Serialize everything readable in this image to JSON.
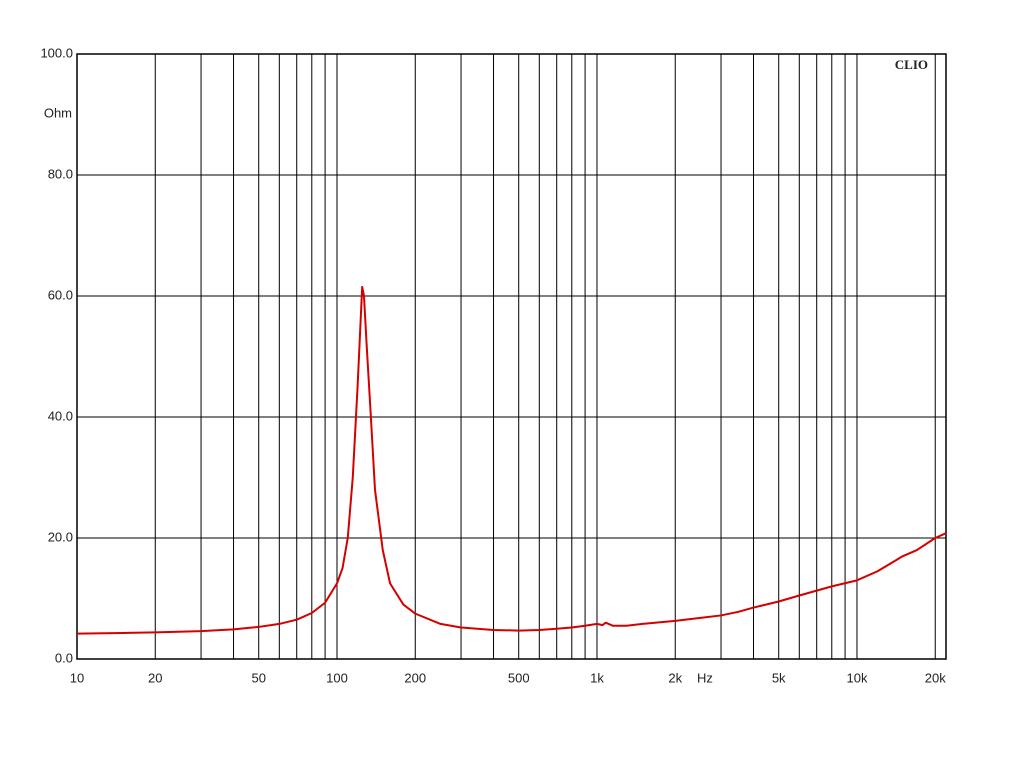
{
  "chart_data": {
    "type": "line",
    "x_label": "Hz",
    "y_label": "Ohm",
    "annotation": "CLIO",
    "xlog": true,
    "grid": true,
    "xlim": [
      10,
      22000
    ],
    "ylim": [
      0,
      100
    ],
    "xticks": [
      10,
      20,
      50,
      100,
      200,
      500,
      {
        "value": 1000,
        "label": "1k"
      },
      {
        "value": 2000,
        "label": "2k"
      },
      {
        "value": 5000,
        "label": "5k"
      },
      {
        "value": 10000,
        "label": "10k"
      },
      {
        "value": 20000,
        "label": "20k"
      }
    ],
    "xminor": [
      30,
      40,
      60,
      70,
      80,
      90,
      300,
      400,
      600,
      700,
      800,
      900,
      3000,
      4000,
      6000,
      7000,
      8000,
      9000
    ],
    "yticks": [
      {
        "value": 0,
        "label": "0.0"
      },
      {
        "value": 20,
        "label": "20.0"
      },
      {
        "value": 40,
        "label": "40.0"
      },
      {
        "value": 60,
        "label": "60.0"
      },
      {
        "value": 80,
        "label": "80.0"
      },
      {
        "value": 100,
        "label": "100.0"
      }
    ],
    "x": [
      10,
      15,
      20,
      30,
      40,
      50,
      60,
      70,
      80,
      90,
      100,
      105,
      110,
      115,
      120,
      123,
      125,
      127,
      130,
      135,
      140,
      150,
      160,
      180,
      200,
      250,
      300,
      400,
      500,
      600,
      700,
      800,
      900,
      1000,
      1050,
      1080,
      1150,
      1300,
      1500,
      2000,
      2500,
      3000,
      3500,
      4000,
      5000,
      6000,
      7000,
      8000,
      10000,
      12000,
      15000,
      17000,
      20000,
      22000
    ],
    "series": [
      {
        "color": "#d40000",
        "values": [
          4.2,
          4.3,
          4.4,
          4.6,
          4.9,
          5.3,
          5.8,
          6.5,
          7.6,
          9.3,
          12.5,
          15,
          20,
          30,
          45,
          55,
          61.5,
          60,
          52,
          40,
          28,
          18,
          12.5,
          9,
          7.5,
          5.8,
          5.2,
          4.8,
          4.7,
          4.8,
          5,
          5.2,
          5.5,
          5.8,
          5.6,
          6,
          5.5,
          5.5,
          5.8,
          6.3,
          6.8,
          7.2,
          7.8,
          8.5,
          9.5,
          10.5,
          11.3,
          12,
          13,
          14.5,
          17,
          18,
          20,
          20.8
        ]
      }
    ]
  }
}
